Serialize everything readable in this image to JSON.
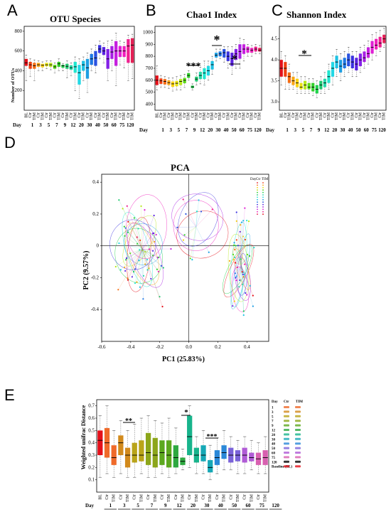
{
  "panels": {
    "A": {
      "letter": "A",
      "title": "OTU Species",
      "ylabel": "Number of OTUs",
      "yticks": [
        "800",
        "600",
        "400",
        "200"
      ],
      "day_label": "Day"
    },
    "B": {
      "letter": "B",
      "title": "Chao1 Index",
      "yticks": [
        "1000",
        "900",
        "800",
        "700",
        "600",
        "500",
        "400"
      ],
      "day_label": "Day",
      "sig": [
        "***",
        "*",
        "*"
      ]
    },
    "C": {
      "letter": "C",
      "title": "Shannon Index",
      "yticks": [
        "4.5",
        "4.0",
        "3.5",
        "3.0"
      ],
      "day_label": "Day",
      "sig": [
        "*"
      ]
    },
    "D": {
      "letter": "D",
      "title": "PCA",
      "xlabel": "PC1 (25.83%)",
      "ylabel": "PC2 (9.57%)",
      "xticks": [
        "-0.6",
        "-0.4",
        "-0.2",
        "0.0",
        "0.2",
        "0.4"
      ],
      "yticks": [
        "0.4",
        "0.2",
        "0",
        "-0.2",
        "-0.4"
      ],
      "legend_header": [
        "Day",
        "Ctr",
        "TIM"
      ]
    },
    "E": {
      "letter": "E",
      "ylabel": "Weighted unifrac Distance",
      "yticks": [
        "0.7",
        "0.6",
        "0.5",
        "0.4",
        "0.3",
        "0.2",
        "0.1"
      ],
      "day_label": "Day",
      "sig": [
        "**",
        "*",
        "***"
      ],
      "legend_header": [
        "Day",
        "Ctr",
        "TIM"
      ],
      "legend_days": [
        "1",
        "3",
        "5",
        "7",
        "9",
        "12",
        "20",
        "30",
        "40",
        "50",
        "60",
        "75",
        "120",
        "Baseline (BL)"
      ]
    }
  },
  "groups": {
    "full": [
      "BL",
      "Ctr",
      "TIM",
      "Ctr",
      "TIM",
      "Ctr",
      "TIM",
      "Ctr",
      "TIM",
      "Ctr",
      "TIM",
      "Ctr",
      "TIM",
      "Ctr",
      "TIM",
      "Ctr",
      "TIM",
      "Ctr",
      "TIM",
      "Ctr",
      "TIM",
      "Ctr",
      "TIM",
      "Ctr",
      "TIM",
      "Ctr",
      "TIM"
    ],
    "e": [
      "BL",
      "Ctr",
      "TIM",
      "Ctr",
      "TIM",
      "Ctr",
      "TIM",
      "Ctr",
      "TIM",
      "Ctr",
      "TIM",
      "Ctr",
      "TIM",
      "Ctr",
      "TIM",
      "Ctr",
      "TIM",
      "Ctr",
      "TIM",
      "Ctr",
      "TIM",
      "Ctr",
      "TIM",
      "Ctr",
      "TIM"
    ],
    "days_abc": [
      "1",
      "3",
      "5",
      "7",
      "9",
      "12",
      "20",
      "30",
      "40",
      "50",
      "60",
      "75",
      "120"
    ],
    "days_e": [
      "1",
      "3",
      "5",
      "7",
      "9",
      "12",
      "20",
      "30",
      "40",
      "50",
      "60",
      "75",
      "120"
    ]
  },
  "chart_data": [
    {
      "panel": "A",
      "type": "box",
      "title": "OTU Species",
      "ylabel": "Number of OTUs",
      "ylim": [
        0,
        850
      ],
      "boxes": [
        [
          300,
          450,
          480,
          520,
          560
        ],
        [
          340,
          420,
          460,
          490,
          520
        ],
        [
          300,
          420,
          450,
          480,
          510
        ],
        [
          400,
          440,
          460,
          480,
          500
        ],
        [
          400,
          435,
          455,
          470,
          490
        ],
        [
          420,
          445,
          460,
          480,
          500
        ],
        [
          410,
          440,
          460,
          480,
          500
        ],
        [
          380,
          420,
          440,
          460,
          480
        ],
        [
          400,
          440,
          470,
          490,
          520
        ],
        [
          400,
          430,
          450,
          460,
          470
        ],
        [
          330,
          420,
          445,
          470,
          500
        ],
        [
          350,
          410,
          430,
          455,
          480
        ],
        [
          200,
          380,
          440,
          490,
          540
        ],
        [
          120,
          260,
          380,
          460,
          520
        ],
        [
          300,
          400,
          460,
          500,
          540
        ],
        [
          180,
          320,
          430,
          520,
          580
        ],
        [
          400,
          460,
          520,
          570,
          620
        ],
        [
          380,
          450,
          530,
          600,
          660
        ],
        [
          520,
          580,
          620,
          660,
          700
        ],
        [
          480,
          560,
          600,
          640,
          680
        ],
        [
          300,
          420,
          520,
          620,
          700
        ],
        [
          400,
          520,
          590,
          650,
          710
        ],
        [
          250,
          450,
          600,
          700,
          780
        ],
        [
          460,
          540,
          600,
          650,
          700
        ],
        [
          430,
          540,
          600,
          650,
          690
        ],
        [
          300,
          480,
          650,
          720,
          760
        ],
        [
          320,
          480,
          660,
          730,
          770
        ]
      ],
      "colors": [
        "#e5101a",
        "#ef3f10",
        "#f56c12",
        "#f9a514",
        "#fbd20e",
        "#e8e413",
        "#b7e818",
        "#5cdb16",
        "#31cf2b",
        "#1fd24b",
        "#1ec970",
        "#24d8a8",
        "#20e6cf",
        "#22d8e5",
        "#1ec1e3",
        "#1e9fe3",
        "#1f78e3",
        "#2a52e0",
        "#3a31df",
        "#5a22e0",
        "#8321e6",
        "#a71fe3",
        "#c61fdf",
        "#e01fd4",
        "#f01fbd",
        "#ef1f8f",
        "#e51f55"
      ]
    },
    {
      "panel": "B",
      "type": "box",
      "title": "Chao1 Index",
      "ylim": [
        350,
        1050
      ],
      "boxes": [
        [
          520,
          560,
          600,
          640,
          720
        ],
        [
          540,
          570,
          595,
          615,
          640
        ],
        [
          540,
          565,
          590,
          610,
          630
        ],
        [
          530,
          560,
          580,
          600,
          620
        ],
        [
          510,
          545,
          570,
          590,
          620
        ],
        [
          520,
          550,
          575,
          595,
          630
        ],
        [
          520,
          560,
          590,
          610,
          640
        ],
        [
          540,
          575,
          600,
          620,
          650
        ],
        [
          600,
          620,
          640,
          660,
          680
        ],
        [
          520,
          535,
          545,
          555,
          570
        ],
        [
          560,
          590,
          610,
          630,
          660
        ],
        [
          570,
          610,
          640,
          670,
          710
        ],
        [
          560,
          610,
          660,
          700,
          760
        ],
        [
          600,
          640,
          680,
          720,
          760
        ],
        [
          650,
          690,
          730,
          760,
          800
        ],
        [
          760,
          790,
          810,
          830,
          860
        ],
        [
          780,
          800,
          820,
          840,
          860
        ],
        [
          750,
          790,
          830,
          860,
          880
        ],
        [
          700,
          760,
          800,
          840,
          880
        ],
        [
          650,
          720,
          780,
          830,
          880
        ],
        [
          700,
          770,
          820,
          860,
          900
        ],
        [
          700,
          780,
          840,
          900,
          950
        ],
        [
          760,
          820,
          860,
          900,
          940
        ],
        [
          800,
          830,
          860,
          880,
          900
        ],
        [
          800,
          830,
          850,
          870,
          890
        ],
        [
          820,
          840,
          860,
          880,
          900
        ],
        [
          820,
          840,
          850,
          870,
          890
        ]
      ],
      "significance": [
        "***",
        "*",
        "*"
      ]
    },
    {
      "panel": "C",
      "type": "box",
      "title": "Shannon Index",
      "ylim": [
        2.8,
        4.8
      ],
      "boxes": [
        [
          3.4,
          3.6,
          3.8,
          4.0,
          4.2
        ],
        [
          3.3,
          3.6,
          3.8,
          3.95,
          4.1
        ],
        [
          3.3,
          3.45,
          3.6,
          3.7,
          3.9
        ],
        [
          3.3,
          3.4,
          3.5,
          3.6,
          3.7
        ],
        [
          3.2,
          3.35,
          3.45,
          3.55,
          3.7
        ],
        [
          3.2,
          3.3,
          3.35,
          3.45,
          3.6
        ],
        [
          3.2,
          3.3,
          3.4,
          3.5,
          3.6
        ],
        [
          3.2,
          3.3,
          3.35,
          3.45,
          3.55
        ],
        [
          3.15,
          3.25,
          3.35,
          3.45,
          3.55
        ],
        [
          3.1,
          3.2,
          3.3,
          3.4,
          3.5
        ],
        [
          3.2,
          3.3,
          3.4,
          3.5,
          3.6
        ],
        [
          3.2,
          3.35,
          3.45,
          3.55,
          3.7
        ],
        [
          3.3,
          3.45,
          3.6,
          3.75,
          3.9
        ],
        [
          3.4,
          3.6,
          3.8,
          3.95,
          4.1
        ],
        [
          3.6,
          3.8,
          3.95,
          4.1,
          4.25
        ],
        [
          3.5,
          3.7,
          3.85,
          4.0,
          4.15
        ],
        [
          3.6,
          3.8,
          3.9,
          4.05,
          4.2
        ],
        [
          3.7,
          3.85,
          4.0,
          4.15,
          4.3
        ],
        [
          3.6,
          3.8,
          3.95,
          4.1,
          4.2
        ],
        [
          3.6,
          3.75,
          3.9,
          4.05,
          4.2
        ],
        [
          3.7,
          3.85,
          4.0,
          4.15,
          4.3
        ],
        [
          3.8,
          3.95,
          4.05,
          4.2,
          4.35
        ],
        [
          3.9,
          4.05,
          4.15,
          4.3,
          4.45
        ],
        [
          4.0,
          4.15,
          4.3,
          4.45,
          4.6
        ],
        [
          4.1,
          4.25,
          4.35,
          4.5,
          4.65
        ],
        [
          4.2,
          4.3,
          4.4,
          4.55,
          4.7
        ],
        [
          4.3,
          4.4,
          4.5,
          4.6,
          4.75
        ]
      ],
      "significance": [
        "*"
      ]
    },
    {
      "panel": "D",
      "type": "scatter",
      "title": "PCA",
      "xlabel": "PC1 (25.83%)",
      "ylabel": "PC2 (9.57%)",
      "xlim": [
        -0.6,
        0.55
      ],
      "ylim": [
        -0.6,
        0.45
      ],
      "clusters": [
        {
          "cx": -0.32,
          "cy": -0.02,
          "sx": 0.09,
          "sy": 0.14,
          "n": 60
        },
        {
          "cx": 0.36,
          "cy": -0.12,
          "sx": 0.04,
          "sy": 0.16,
          "n": 50
        },
        {
          "cx": 0.05,
          "cy": 0.12,
          "sx": 0.1,
          "sy": 0.1,
          "n": 12
        }
      ]
    },
    {
      "panel": "E",
      "type": "box",
      "ylabel": "Weighted unifrac Distance",
      "ylim": [
        0.0,
        0.75
      ],
      "boxes": [
        [
          0.12,
          0.3,
          0.42,
          0.5,
          0.62
        ],
        [
          0.15,
          0.28,
          0.4,
          0.52,
          0.7
        ],
        [
          0.12,
          0.22,
          0.28,
          0.38,
          0.5
        ],
        [
          0.15,
          0.3,
          0.4,
          0.46,
          0.58
        ],
        [
          0.12,
          0.2,
          0.3,
          0.36,
          0.5
        ],
        [
          0.12,
          0.24,
          0.3,
          0.4,
          0.55
        ],
        [
          0.15,
          0.25,
          0.3,
          0.42,
          0.6
        ],
        [
          0.12,
          0.22,
          0.32,
          0.48,
          0.62
        ],
        [
          0.12,
          0.2,
          0.3,
          0.44,
          0.58
        ],
        [
          0.15,
          0.22,
          0.32,
          0.42,
          0.56
        ],
        [
          0.12,
          0.2,
          0.3,
          0.42,
          0.6
        ],
        [
          0.15,
          0.2,
          0.28,
          0.38,
          0.52
        ],
        [
          0.18,
          0.22,
          0.25,
          0.28,
          0.35
        ],
        [
          0.2,
          0.3,
          0.45,
          0.62,
          0.7
        ],
        [
          0.15,
          0.24,
          0.3,
          0.36,
          0.45
        ],
        [
          0.15,
          0.25,
          0.3,
          0.38,
          0.5
        ],
        [
          0.1,
          0.16,
          0.2,
          0.26,
          0.38
        ],
        [
          0.15,
          0.22,
          0.28,
          0.34,
          0.44
        ],
        [
          0.18,
          0.27,
          0.32,
          0.38,
          0.5
        ],
        [
          0.18,
          0.24,
          0.3,
          0.36,
          0.45
        ],
        [
          0.15,
          0.25,
          0.3,
          0.34,
          0.42
        ],
        [
          0.15,
          0.24,
          0.3,
          0.36,
          0.45
        ],
        [
          0.18,
          0.25,
          0.28,
          0.32,
          0.42
        ],
        [
          0.15,
          0.22,
          0.27,
          0.32,
          0.4
        ],
        [
          0.15,
          0.22,
          0.28,
          0.34,
          0.45
        ]
      ],
      "colors": [
        "#e5101a",
        "#ef6a2a",
        "#ef6a2a",
        "#d28a1c",
        "#d28a1c",
        "#b9a419",
        "#b9a419",
        "#8ca61a",
        "#8ca61a",
        "#5ca81e",
        "#5ca81e",
        "#2da840",
        "#2da840",
        "#18b48c",
        "#18b48c",
        "#16a8b6",
        "#16a8b6",
        "#2b88d8",
        "#2b88d8",
        "#7a63d9",
        "#7a63d9",
        "#b05bd6",
        "#b05bd6",
        "#d860b0",
        "#d860b0"
      ],
      "significance": [
        "**",
        "*",
        "***"
      ]
    }
  ]
}
